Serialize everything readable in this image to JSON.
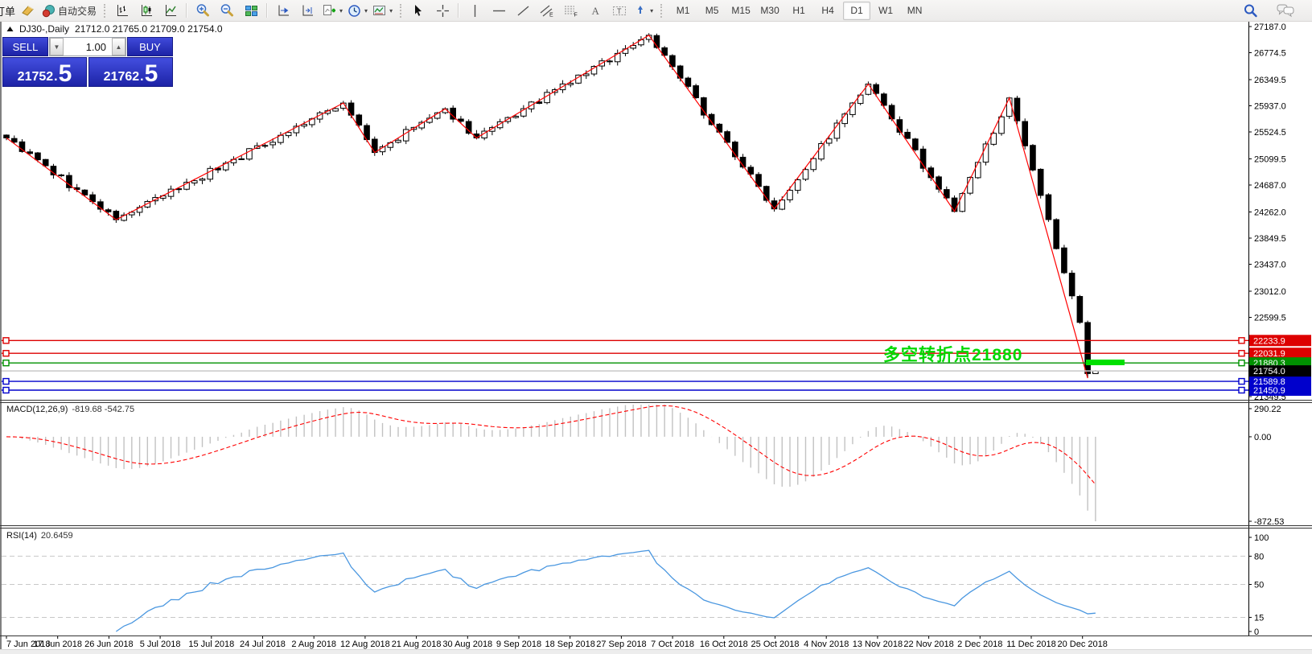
{
  "toolbar": {
    "order_label": "订单",
    "auto_trading_label": "自动交易",
    "timeframes": [
      "M1",
      "M5",
      "M15",
      "M30",
      "H1",
      "H4",
      "D1",
      "W1",
      "MN"
    ],
    "active_timeframe": "D1",
    "tool_letters": {
      "channel": "E",
      "fibonacci": "F",
      "text": "A",
      "label": "T"
    },
    "icon_names": [
      "new-order-icon",
      "auto-trading-icon",
      "bar-chart-icon",
      "candlestick-chart-icon",
      "line-chart-icon",
      "zoom-in-icon",
      "zoom-out-icon",
      "tile-windows-icon",
      "chart-shift-icon",
      "chart-autoscroll-icon",
      "add-indicator-icon",
      "periodicity-icon",
      "template-icon",
      "cursor-icon",
      "crosshair-icon",
      "vertical-line-icon",
      "horizontal-line-icon",
      "trendline-icon",
      "equidistant-channel-icon",
      "fibonacci-icon",
      "text-icon",
      "text-label-icon",
      "arrows-icon",
      "search-icon",
      "chat-icon"
    ]
  },
  "chart": {
    "symbol_title": "DJ30-,Daily",
    "ohlc": "21712.0 21765.0 21709.0 21754.0"
  },
  "trade_panel": {
    "sell_label": "SELL",
    "buy_label": "BUY",
    "volume": "1.00",
    "sell_price": {
      "main": "21752",
      "dot": ".",
      "frac": "5"
    },
    "buy_price": {
      "main": "21762",
      "dot": ".",
      "frac": "5"
    }
  },
  "annotation": {
    "text": "多空转折点21880",
    "color": "#00d800",
    "highlight_color": "#00e000"
  },
  "colors": {
    "panel_blue_top": "#3f4ada",
    "panel_blue_bottom": "#1d23a6",
    "zigzag_red": "#ff0000",
    "macd_histogram": "#c2c2c2",
    "macd_signal": "#ff0000",
    "rsi_line": "#4a97e0",
    "current_price_line": "#c8c8c8"
  },
  "price_axis": {
    "ticks": [
      "27187.0",
      "26774.5",
      "26349.5",
      "25937.0",
      "25524.5",
      "25099.5",
      "24687.0",
      "24262.0",
      "23849.5",
      "23437.0",
      "23012.0",
      "22599.5",
      "21349.5"
    ]
  },
  "levels": [
    {
      "text": "22233.9",
      "value": 22233.9,
      "color": "#dd0000"
    },
    {
      "text": "22031.9",
      "value": 22031.9,
      "color": "#dd0000"
    },
    {
      "text": "21880.3",
      "value": 21880.3,
      "color": "#009000"
    },
    {
      "text": "21589.8",
      "value": 21589.8,
      "color": "#0000cc"
    },
    {
      "text": "21450.9",
      "value": 21450.9,
      "color": "#0000cc"
    }
  ],
  "current_price": {
    "text": "21754.0",
    "value": 21754.0,
    "label_bg": "#000000"
  },
  "macd": {
    "label": "MACD(12,26,9)",
    "values": "-819.68 -542.75",
    "ticks": [
      "290.22",
      "0.00",
      "-872.53"
    ]
  },
  "rsi": {
    "label": "RSI(14)",
    "value": "20.6459",
    "ticks": [
      "100",
      "80",
      "50",
      "15",
      "0"
    ],
    "levels": [
      80,
      50,
      15
    ]
  },
  "dates": [
    "7 Jun 2018",
    "17 Jun 2018",
    "26 Jun 2018",
    "5 Jul 2018",
    "15 Jul 2018",
    "24 Jul 2018",
    "2 Aug 2018",
    "12 Aug 2018",
    "21 Aug 2018",
    "30 Aug 2018",
    "9 Sep 2018",
    "18 Sep 2018",
    "27 Sep 2018",
    "7 Oct 2018",
    "16 Oct 2018",
    "25 Oct 2018",
    "4 Nov 2018",
    "13 Nov 2018",
    "22 Nov 2018",
    "2 Dec 2018",
    "11 Dec 2018",
    "20 Dec 2018"
  ],
  "chart_data": {
    "type": "candlestick",
    "symbol": "DJ30-",
    "timeframe": "Daily",
    "bars": 140,
    "y_range": [
      21349.5,
      27187.0
    ],
    "macd_range": [
      -872.53,
      290.22
    ],
    "macd_last": [
      -819.68,
      -542.75
    ],
    "rsi_last": 20.6459,
    "last_bar": {
      "open": 21712.0,
      "high": 21765.0,
      "low": 21709.0,
      "close": 21754.0
    },
    "zigzag_pivots": [
      [
        0,
        25430
      ],
      [
        14,
        24140
      ],
      [
        43,
        25980
      ],
      [
        47,
        25200
      ],
      [
        56,
        25890
      ],
      [
        60,
        25430
      ],
      [
        82,
        27050
      ],
      [
        98,
        24310
      ],
      [
        110,
        26280
      ],
      [
        121,
        24270
      ],
      [
        128,
        26060
      ],
      [
        138,
        21641
      ]
    ],
    "close_pivots": [
      [
        0,
        25430
      ],
      [
        14,
        24140
      ],
      [
        43,
        25980
      ],
      [
        47,
        25200
      ],
      [
        56,
        25890
      ],
      [
        60,
        25430
      ],
      [
        82,
        27050
      ],
      [
        98,
        24310
      ],
      [
        110,
        26280
      ],
      [
        121,
        24270
      ],
      [
        128,
        26060
      ],
      [
        137,
        22520
      ],
      [
        138,
        21712
      ],
      [
        139,
        21754
      ]
    ]
  }
}
